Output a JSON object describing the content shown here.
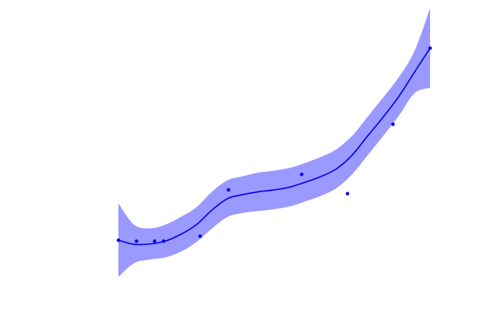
{
  "chart_data": {
    "type": "scatter",
    "title": "",
    "xlabel": "",
    "ylabel": "",
    "grid": false,
    "axes_visible": false,
    "xlim": [
      0,
      1
    ],
    "ylim": [
      0,
      1
    ],
    "colors": {
      "points": "#0000ee",
      "fit_line": "#0000ee",
      "band": "#9999ff"
    },
    "series": [
      {
        "kind": "points",
        "x": [
          0.0,
          0.058,
          0.116,
          0.145,
          0.262,
          0.353,
          0.588,
          0.735,
          0.881,
          1.0
        ],
        "y": [
          0.043,
          0.04,
          0.04,
          0.04,
          0.056,
          0.205,
          0.255,
          0.193,
          0.416,
          0.661
        ]
      },
      {
        "kind": "fit",
        "x": [
          0.0,
          0.05,
          0.1,
          0.15,
          0.2,
          0.25,
          0.3,
          0.35,
          0.4,
          0.45,
          0.5,
          0.55,
          0.6,
          0.65,
          0.7,
          0.75,
          0.8,
          0.85,
          0.9,
          0.95,
          1.0
        ],
        "y": [
          0.043,
          0.03,
          0.031,
          0.04,
          0.062,
          0.093,
          0.14,
          0.177,
          0.19,
          0.199,
          0.205,
          0.214,
          0.23,
          0.248,
          0.273,
          0.317,
          0.379,
          0.44,
          0.506,
          0.584,
          0.661
        ],
        "upper": [
          0.161,
          0.093,
          0.081,
          0.093,
          0.118,
          0.149,
          0.199,
          0.236,
          0.249,
          0.261,
          0.267,
          0.276,
          0.292,
          0.311,
          0.336,
          0.379,
          0.441,
          0.503,
          0.568,
          0.652,
          0.789
        ],
        "lower": [
          -0.075,
          -0.031,
          -0.019,
          -0.012,
          0.006,
          0.037,
          0.081,
          0.118,
          0.131,
          0.137,
          0.143,
          0.152,
          0.168,
          0.186,
          0.211,
          0.255,
          0.317,
          0.379,
          0.444,
          0.516,
          0.534
        ]
      }
    ]
  }
}
